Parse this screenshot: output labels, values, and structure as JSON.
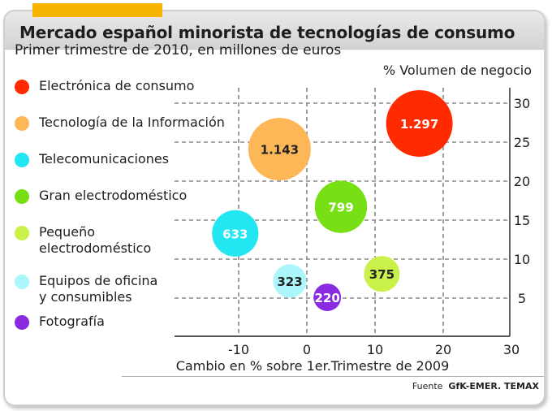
{
  "header": {
    "title": "Mercado español minorista de tecnologías de consumo",
    "subtitle": "Primer trimestre de 2010, en millones de euros"
  },
  "source": {
    "prefix": "Fuente",
    "name": "GfK-EMER. TEMAX"
  },
  "chart_data": {
    "type": "scatter",
    "subtype": "bubble",
    "xlabel": "Cambio en % sobre 1er.Trimestre de 2009",
    "ylabel": "% Volumen de negocio",
    "xlim": [
      -20,
      30
    ],
    "ylim": [
      0,
      32
    ],
    "xticks": [
      -10,
      0,
      10,
      20,
      30
    ],
    "yticks": [
      5,
      10,
      15,
      20,
      25,
      30
    ],
    "grid": true,
    "legend_position": "left",
    "series": [
      {
        "name": "Electrónica de consumo",
        "x": 16.5,
        "y": 27.4,
        "value": 1297,
        "label": "1.297",
        "color": "#ff2a00",
        "text_color": "#ffffff"
      },
      {
        "name": "Tecnología de la Información",
        "x": -4,
        "y": 24.1,
        "value": 1143,
        "label": "1.143",
        "color": "#fdb757",
        "text_color": "#222222"
      },
      {
        "name": "Telecomunicaciones",
        "x": -10.5,
        "y": 13.3,
        "value": 633,
        "label": "633",
        "color": "#22e6f2",
        "text_color": "#ffffff"
      },
      {
        "name": "Gran electrodoméstico",
        "x": 5,
        "y": 16.7,
        "value": 799,
        "label": "799",
        "color": "#77e014",
        "text_color": "#ffffff"
      },
      {
        "name": "Pequeño\nelectrodoméstico",
        "x": 11,
        "y": 8.1,
        "value": 375,
        "label": "375",
        "color": "#c9f14a",
        "text_color": "#222222"
      },
      {
        "name": "Equipos de oficina\ny consumibles",
        "x": -2.5,
        "y": 7.2,
        "value": 323,
        "label": "323",
        "color": "#aaf6fb",
        "text_color": "#222222"
      },
      {
        "name": "Fotografía",
        "x": 3,
        "y": 5.1,
        "value": 220,
        "label": "220",
        "color": "#8a2be2",
        "text_color": "#ffffff"
      }
    ]
  }
}
